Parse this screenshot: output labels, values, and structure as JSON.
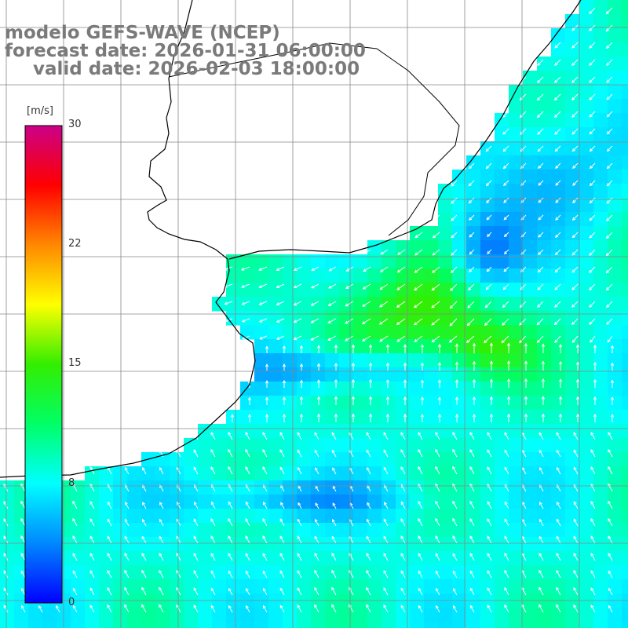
{
  "title": {
    "model": "modelo GEFS-WAVE (NCEP)",
    "forecast": "forecast date: 2026-01-31 06:00:00",
    "valid": "valid date: 2026-02-03 18:00:00"
  },
  "colorbar": {
    "unit": "[m/s]",
    "ticks": [
      "30",
      "22",
      "15",
      "8",
      "0"
    ],
    "range": [
      0,
      30
    ],
    "colors": [
      "#0000ff",
      "#0088ff",
      "#00ffff",
      "#00ff66",
      "#33ee00",
      "#ffff00",
      "#ff8800",
      "#ff0000",
      "#cc0088"
    ]
  },
  "colors": {
    "background": "#ffffff",
    "coastline": "#000000",
    "grid": "#888888",
    "arrows": "#ffffff",
    "title": "#7a7a7a"
  }
}
